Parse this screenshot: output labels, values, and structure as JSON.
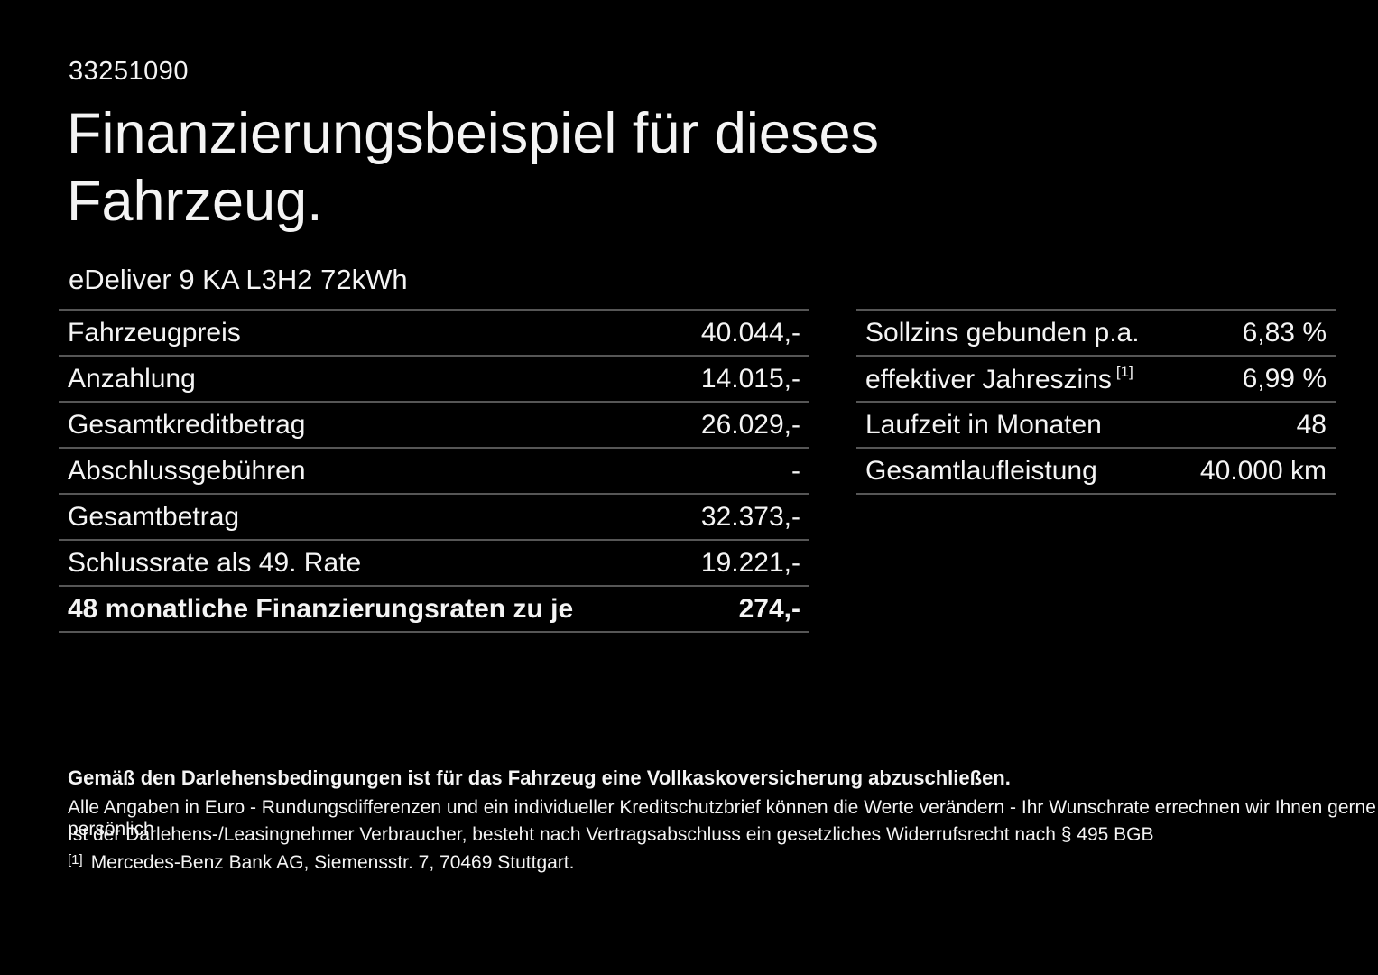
{
  "page": {
    "vehicle_id": "33251090",
    "title": "Finanzierungsbeispiel für dieses\nFahrzeug.",
    "subtitle": "eDeliver 9 KA L3H2 72kWh"
  },
  "left_table": {
    "rows": [
      {
        "label": "Fahrzeugpreis",
        "value": "40.044,-"
      },
      {
        "label": "Anzahlung",
        "value": "14.015,-"
      },
      {
        "label": "Gesamtkreditbetrag",
        "value": "26.029,-"
      },
      {
        "label": "Abschlussgebühren",
        "value": "-"
      },
      {
        "label": "Gesamtbetrag",
        "value": "32.373,-"
      },
      {
        "label": "Schlussrate als 49. Rate",
        "value": "19.221,-"
      },
      {
        "label": "48 monatliche Finanzierungsraten zu je",
        "value": "274,-"
      }
    ]
  },
  "right_table": {
    "rows": [
      {
        "label": "Sollzins gebunden p.a.",
        "sup": "",
        "value": "6,83 %"
      },
      {
        "label": "effektiver Jahreszins",
        "sup": "[1]",
        "value": "6,99 %"
      },
      {
        "label": "Laufzeit in Monaten",
        "sup": "",
        "value": "48"
      },
      {
        "label": "Gesamtlaufleistung",
        "sup": "",
        "value": "40.000 km"
      }
    ]
  },
  "footer": {
    "insurance_note": "Gemäß den Darlehensbedingungen ist für das Fahrzeug eine Vollkaskoversicherung abzuschließen.",
    "note_line1": "Alle Angaben in Euro - Rundungsdifferenzen und ein individueller Kreditschutzbrief können die Werte verändern - Ihr Wunschrate errechnen wir Ihnen gerne persönlich",
    "note_line2": "Ist der Darlehens-/Leasingnehmer Verbraucher, besteht nach Vertragsabschluss ein gesetzliches Widerrufsrecht nach § 495 BGB",
    "footnote_marker": "[1]",
    "footnote_text": "Mercedes-Benz Bank AG, Siemensstr. 7, 70469 Stuttgart."
  },
  "colors": {
    "background": "#000000",
    "text": "#f4f4f4",
    "divider": "#565656"
  }
}
